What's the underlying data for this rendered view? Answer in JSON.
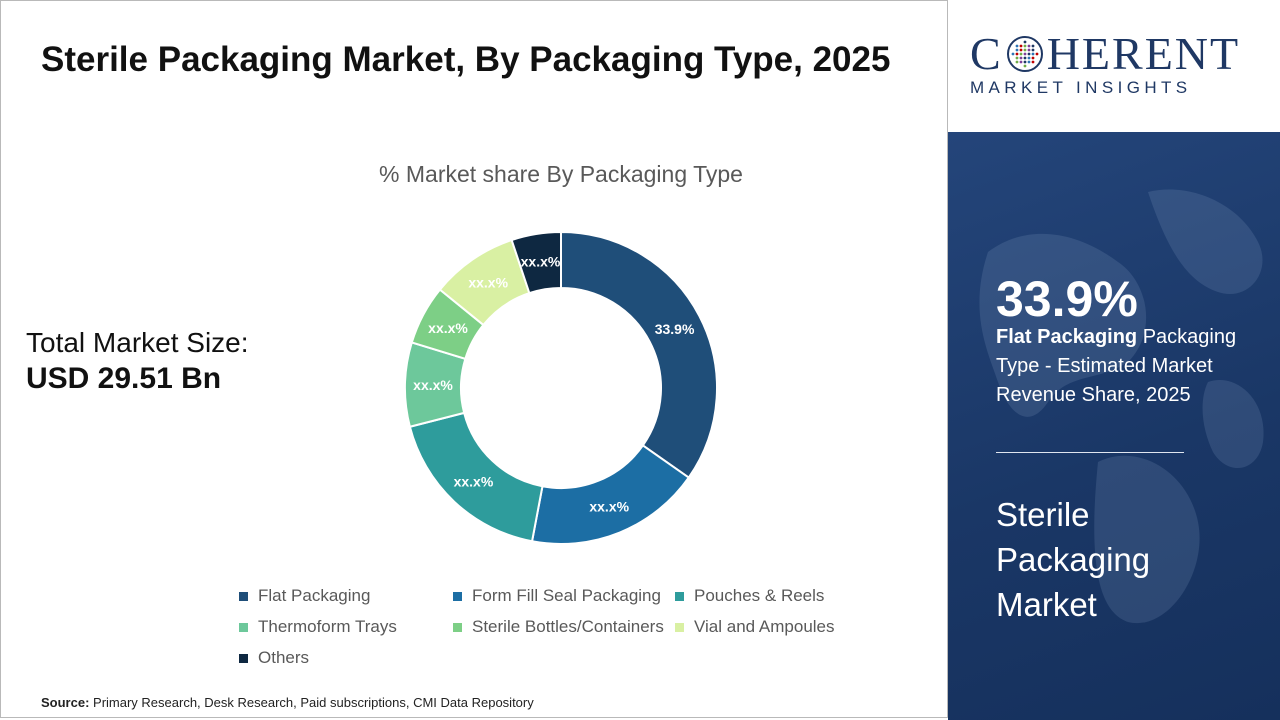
{
  "title": "Sterile Packaging Market, By Packaging Type, 2025",
  "market_size": {
    "label": "Total Market Size:",
    "value": "USD 29.51 Bn"
  },
  "chart_data": {
    "type": "pie",
    "donut": true,
    "title": "% Market share By Packaging Type",
    "categories": [
      "Flat Packaging",
      "Form Fill Seal Packaging",
      "Pouches & Reels",
      "Thermoform Trays",
      "Sterile Bottles/Containers",
      "Vial and Ampoules",
      "Others"
    ],
    "values": [
      33.9,
      17.8,
      17.6,
      8.5,
      6.0,
      8.8,
      5.0
    ],
    "data_labels": [
      "33.9%",
      "xx.x%",
      "xx.x%",
      "xx.x%",
      "xx.x%",
      "xx.x%",
      "xx.x%"
    ],
    "colors": [
      "#1f4e79",
      "#1c6ea4",
      "#2e9c9c",
      "#6dc89b",
      "#7dcf86",
      "#d9f0a3",
      "#0e2841"
    ],
    "label_colors": [
      "#ffffff",
      "#ffffff",
      "#ffffff",
      "#ffffff",
      "#ffffff",
      "#ffffff",
      "#ffffff"
    ],
    "legend_position": "bottom"
  },
  "source": {
    "label": "Source:",
    "text": "Primary Research, Desk Research, Paid subscriptions, CMI Data Repository"
  },
  "logo": {
    "word_pre": "C",
    "word_post": "HERENT",
    "sub": "MARKET INSIGHTS",
    "color": "#1f3864"
  },
  "highlight": {
    "value": "33.9%",
    "segment_bold": "Flat Packaging",
    "segment_rest": " Packaging Type - Estimated Market Revenue Share, 2025",
    "market_name": "Sterile Packaging Market"
  }
}
